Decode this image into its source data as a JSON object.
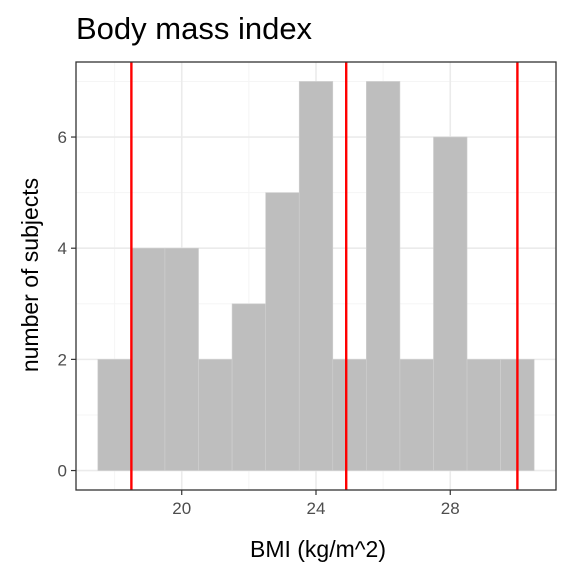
{
  "chart_data": {
    "type": "bar",
    "title": "Body mass index",
    "xlabel": "BMI (kg/m^2)",
    "ylabel": "number of subjects",
    "bin_width": 1,
    "bins": [
      {
        "start": 17.5,
        "end": 18.5,
        "count": 2
      },
      {
        "start": 18.5,
        "end": 19.5,
        "count": 4
      },
      {
        "start": 19.5,
        "end": 20.5,
        "count": 4
      },
      {
        "start": 20.5,
        "end": 21.5,
        "count": 2
      },
      {
        "start": 21.5,
        "end": 22.5,
        "count": 3
      },
      {
        "start": 22.5,
        "end": 23.5,
        "count": 5
      },
      {
        "start": 23.5,
        "end": 24.5,
        "count": 7
      },
      {
        "start": 24.5,
        "end": 25.5,
        "count": 2
      },
      {
        "start": 25.5,
        "end": 26.5,
        "count": 7
      },
      {
        "start": 26.5,
        "end": 27.5,
        "count": 2
      },
      {
        "start": 27.5,
        "end": 28.5,
        "count": 6
      },
      {
        "start": 28.5,
        "end": 29.5,
        "count": 2
      },
      {
        "start": 29.5,
        "end": 30.5,
        "count": 2
      }
    ],
    "xlim": [
      17.5,
      30.5
    ],
    "ylim": [
      0,
      7
    ],
    "x_ticks": [
      20,
      24,
      28
    ],
    "x_tick_labels": [
      "20",
      "24",
      "28"
    ],
    "y_ticks": [
      0,
      2,
      4,
      6
    ],
    "y_tick_labels": [
      "0",
      "2",
      "4",
      "6"
    ],
    "reference_lines": [
      18.5,
      24.9,
      30
    ],
    "grid": true,
    "colors": {
      "bar_fill": "#bebebe",
      "bar_border": "#d0d0d0",
      "reference_line": "#ff0000",
      "grid_major": "#ebebeb",
      "grid_minor": "#f5f5f5",
      "panel_border": "#333333",
      "tick_label": "#4d4d4d"
    }
  }
}
